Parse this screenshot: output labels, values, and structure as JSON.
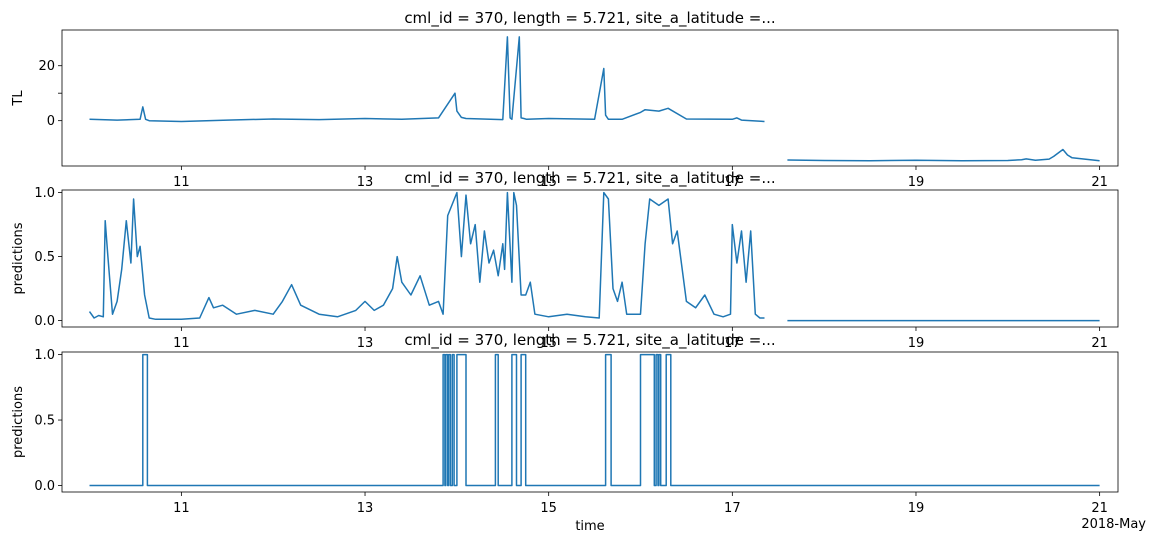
{
  "figure": {
    "date_offset_label": "2018-May"
  },
  "chart_data": [
    {
      "type": "line",
      "title": "cml_id = 370, length = 5.721, site_a_latitude =...",
      "xlabel": "",
      "ylabel": "TL",
      "color": "#1f77b4",
      "xlim": [
        9.7,
        21.2
      ],
      "ylim": [
        -16.5,
        33
      ],
      "xticks": [
        11,
        13,
        15,
        17,
        19,
        21
      ],
      "yticks": [
        0,
        10,
        20
      ],
      "ytick_labels": [
        "0",
        "",
        "20"
      ],
      "grid": false,
      "series": [
        {
          "x": [
            10.0,
            10.3,
            10.55,
            10.58,
            10.61,
            10.65,
            11.0,
            11.5,
            12.0,
            12.5,
            13.0,
            13.4,
            13.8,
            13.98,
            14.0,
            14.05,
            14.1,
            14.5,
            14.55,
            14.58,
            14.6,
            14.68,
            14.7,
            14.73,
            14.76,
            15.0,
            15.5,
            15.6,
            15.62,
            15.65,
            15.8,
            16.0,
            16.05,
            16.2,
            16.3,
            16.5,
            17.0,
            17.05,
            17.1,
            17.35
          ],
          "y": [
            0.5,
            0.2,
            0.5,
            5.0,
            0.5,
            0.0,
            -0.3,
            0.2,
            0.6,
            0.4,
            0.8,
            0.5,
            1.0,
            10.0,
            3.5,
            1.2,
            0.8,
            0.4,
            30.5,
            1.0,
            0.5,
            30.5,
            1.0,
            0.8,
            0.5,
            0.8,
            0.5,
            19.0,
            2.0,
            0.5,
            0.5,
            3.0,
            4.0,
            3.5,
            4.5,
            0.6,
            0.5,
            1.0,
            0.2,
            -0.3
          ]
        },
        {
          "x": [
            17.6,
            18.0,
            18.5,
            19.0,
            19.5,
            20.0,
            20.15,
            20.2,
            20.3,
            20.45,
            20.5,
            20.6,
            20.65,
            20.7,
            21.0
          ],
          "y": [
            -14.3,
            -14.5,
            -14.6,
            -14.4,
            -14.6,
            -14.5,
            -14.2,
            -13.9,
            -14.4,
            -14.0,
            -13.0,
            -10.5,
            -12.5,
            -13.5,
            -14.6
          ]
        }
      ]
    },
    {
      "type": "line",
      "title": "cml_id = 370, length = 5.721, site_a_latitude =...",
      "xlabel": "",
      "ylabel": "predictions",
      "color": "#1f77b4",
      "xlim": [
        9.7,
        21.2
      ],
      "ylim": [
        -0.05,
        1.02
      ],
      "xticks": [
        11,
        13,
        15,
        17,
        19,
        21
      ],
      "yticks": [
        0,
        0.5,
        1.0
      ],
      "ytick_labels": [
        "0.0",
        "0.5",
        "1.0"
      ],
      "grid": false,
      "series": [
        {
          "x": [
            10.0,
            10.05,
            10.1,
            10.15,
            10.17,
            10.2,
            10.25,
            10.3,
            10.35,
            10.4,
            10.45,
            10.48,
            10.52,
            10.55,
            10.6,
            10.65,
            10.72,
            10.8,
            11.0,
            11.2,
            11.3,
            11.35,
            11.45,
            11.6,
            11.8,
            12.0,
            12.1,
            12.2,
            12.3,
            12.5,
            12.7,
            12.9,
            13.0,
            13.1,
            13.2,
            13.3,
            13.35,
            13.4,
            13.5,
            13.6,
            13.7,
            13.8,
            13.85,
            13.9,
            14.0,
            14.05,
            14.1,
            14.15,
            14.2,
            14.25,
            14.3,
            14.35,
            14.4,
            14.45,
            14.5,
            14.52,
            14.55,
            14.6,
            14.62,
            14.65,
            14.7,
            14.75,
            14.8,
            14.85,
            15.0,
            15.2,
            15.4,
            15.55,
            15.6,
            15.65,
            15.7,
            15.75,
            15.8,
            15.85,
            16.0,
            16.05,
            16.1,
            16.2,
            16.3,
            16.35,
            16.4,
            16.5,
            16.6,
            16.7,
            16.8,
            16.9,
            16.98,
            17.0,
            17.05,
            17.1,
            17.15,
            17.2,
            17.25,
            17.3,
            17.35
          ],
          "y": [
            0.07,
            0.02,
            0.04,
            0.03,
            0.78,
            0.5,
            0.05,
            0.15,
            0.4,
            0.78,
            0.45,
            0.95,
            0.5,
            0.58,
            0.2,
            0.02,
            0.01,
            0.01,
            0.01,
            0.02,
            0.18,
            0.1,
            0.12,
            0.05,
            0.08,
            0.05,
            0.15,
            0.28,
            0.12,
            0.05,
            0.03,
            0.08,
            0.15,
            0.08,
            0.12,
            0.25,
            0.5,
            0.3,
            0.2,
            0.35,
            0.12,
            0.15,
            0.05,
            0.82,
            1.0,
            0.5,
            0.98,
            0.6,
            0.75,
            0.3,
            0.7,
            0.45,
            0.55,
            0.35,
            0.6,
            0.4,
            1.0,
            0.3,
            1.0,
            0.9,
            0.2,
            0.2,
            0.3,
            0.05,
            0.03,
            0.05,
            0.03,
            0.02,
            1.0,
            0.95,
            0.25,
            0.15,
            0.3,
            0.05,
            0.05,
            0.6,
            0.95,
            0.9,
            0.95,
            0.6,
            0.7,
            0.15,
            0.1,
            0.2,
            0.05,
            0.03,
            0.05,
            0.75,
            0.45,
            0.7,
            0.3,
            0.7,
            0.05,
            0.02,
            0.02
          ]
        },
        {
          "x": [
            17.6,
            21.0
          ],
          "y": [
            0.0,
            0.0
          ]
        }
      ]
    },
    {
      "type": "line",
      "title": "cml_id = 370, length = 5.721, site_a_latitude =...",
      "xlabel": "time",
      "ylabel": "predictions",
      "color": "#1f77b4",
      "xlim": [
        9.7,
        21.2
      ],
      "ylim": [
        -0.05,
        1.02
      ],
      "xticks": [
        11,
        13,
        15,
        17,
        19,
        21
      ],
      "yticks": [
        0,
        0.5,
        1.0
      ],
      "ytick_labels": [
        "0.0",
        "0.5",
        "1.0"
      ],
      "grid": false,
      "steps": [
        [
          10.0,
          0
        ],
        [
          10.58,
          1
        ],
        [
          10.63,
          0
        ],
        [
          13.85,
          1
        ],
        [
          13.87,
          0
        ],
        [
          13.88,
          1
        ],
        [
          13.9,
          0
        ],
        [
          13.91,
          1
        ],
        [
          13.93,
          0
        ],
        [
          13.95,
          1
        ],
        [
          13.97,
          0
        ],
        [
          14.0,
          1
        ],
        [
          14.1,
          0
        ],
        [
          14.42,
          1
        ],
        [
          14.45,
          0
        ],
        [
          14.6,
          1
        ],
        [
          14.65,
          0
        ],
        [
          14.7,
          1
        ],
        [
          14.75,
          0
        ],
        [
          15.62,
          1
        ],
        [
          15.68,
          0
        ],
        [
          16.0,
          1
        ],
        [
          16.15,
          0
        ],
        [
          16.17,
          1
        ],
        [
          16.19,
          0
        ],
        [
          16.2,
          1
        ],
        [
          16.22,
          0
        ],
        [
          16.28,
          1
        ],
        [
          16.33,
          0
        ],
        [
          21.0,
          0
        ]
      ]
    }
  ]
}
